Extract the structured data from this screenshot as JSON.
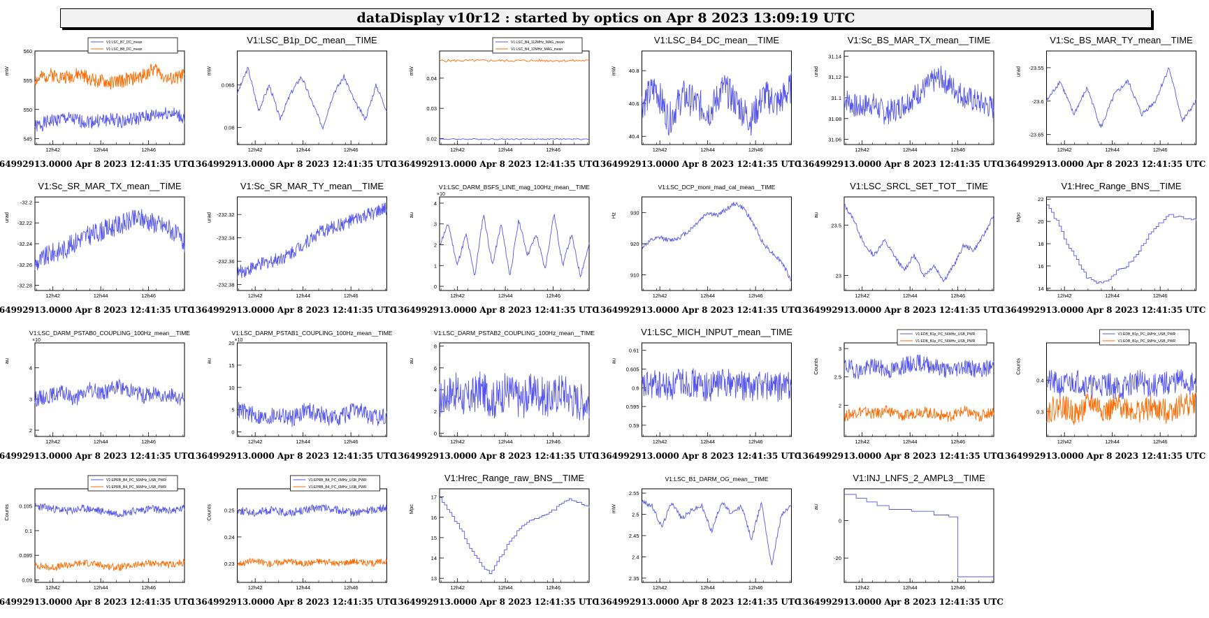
{
  "header": {
    "title": "dataDisplay v10r12 : started by optics on Apr  8 2023 13:09:19 UTC"
  },
  "colors": {
    "blue": "#5555ee",
    "orange": "#ff6a00",
    "frame": "#000000"
  },
  "footer_text": "1364992913.0000 Apr 8 2023 12:41:35 UTC",
  "x_ticks": [
    "12h42",
    "12h44",
    "12h46"
  ],
  "chart_data": [
    {
      "type": "line",
      "title": "",
      "ylabel": "mW",
      "ylim": [
        544,
        560
      ],
      "yticks": [
        545,
        550,
        555,
        560
      ],
      "legend": {
        "placement": "top",
        "entries": [
          "V1:LSC_B7_DC_mean",
          "V1:LSC_B8_DC_mean"
        ]
      },
      "series": [
        {
          "name": "V1:LSC_B7_DC_mean",
          "color": "blue",
          "kind": "noisy",
          "base": 547.5,
          "amp": 1.2,
          "seed": 1,
          "shape": [
            547,
            548,
            548.5,
            548,
            548,
            548.3,
            548,
            548.5,
            549,
            549.5,
            548.5
          ]
        },
        {
          "name": "V1:LSC_B8_DC_mean",
          "color": "orange",
          "kind": "noisy",
          "base": 555,
          "amp": 1.2,
          "seed": 2,
          "shape": [
            555,
            556,
            555.5,
            556,
            555,
            554.5,
            555,
            555.5,
            557,
            555,
            556
          ]
        }
      ]
    },
    {
      "type": "line",
      "title": "V1:LSC_B1p_DC_mean__TIME",
      "ylabel": "mW",
      "ylim": [
        0.058,
        0.069
      ],
      "yticks": [
        0.06,
        0.065
      ],
      "series": [
        {
          "color": "blue",
          "kind": "smooth",
          "seed": 3,
          "shape": [
            0.064,
            0.067,
            0.062,
            0.065,
            0.061,
            0.064,
            0.066,
            0.063,
            0.06,
            0.064,
            0.066,
            0.063,
            0.061,
            0.065,
            0.062
          ]
        }
      ]
    },
    {
      "type": "line",
      "title": "",
      "ylabel": "mW",
      "ylim": [
        0.018,
        0.049
      ],
      "yticks": [
        0.02,
        0.03,
        0.04
      ],
      "legend": {
        "placement": "top",
        "entries": [
          "V1:LSC_B4_112MHz_MAG_mean",
          "V1:LSC_B4_12MHz_MAG_mean"
        ]
      },
      "series": [
        {
          "name": "V1:LSC_B4_112MHz_MAG_mean",
          "color": "blue",
          "kind": "flat",
          "base": 0.0198,
          "amp": 0.0002,
          "seed": 4
        },
        {
          "name": "V1:LSC_B4_12MHz_MAG_mean",
          "color": "orange",
          "kind": "flat",
          "base": 0.0458,
          "amp": 0.0004,
          "seed": 5
        }
      ]
    },
    {
      "type": "line",
      "title": "V1:LSC_B4_DC_mean__TIME",
      "ylabel": "mW",
      "ylim": [
        40.35,
        40.92
      ],
      "yticks": [
        40.4,
        40.6,
        40.8
      ],
      "series": [
        {
          "color": "blue",
          "kind": "noisy",
          "amp": 0.1,
          "seed": 6,
          "shape": [
            40.6,
            40.7,
            40.5,
            40.65,
            40.6,
            40.55,
            40.7,
            40.6,
            40.5,
            40.65,
            40.6,
            40.7
          ]
        }
      ]
    },
    {
      "type": "line",
      "title": "V1:Sc_BS_MAR_TX_mean__TIME",
      "ylabel": "urad",
      "ylim": [
        31.055,
        31.145
      ],
      "yticks": [
        31.06,
        31.08,
        31.1,
        31.12,
        31.14
      ],
      "series": [
        {
          "color": "blue",
          "kind": "noisy",
          "amp": 0.012,
          "seed": 7,
          "shape": [
            31.1,
            31.09,
            31.095,
            31.085,
            31.09,
            31.1,
            31.11,
            31.12,
            31.11,
            31.1,
            31.095,
            31.09
          ]
        }
      ]
    },
    {
      "type": "line",
      "title": "V1:Sc_BS_MAR_TY_mean__TIME",
      "ylabel": "urad",
      "ylim": [
        -23.665,
        -23.525
      ],
      "yticks": [
        -23.65,
        -23.6,
        -23.55
      ],
      "series": [
        {
          "color": "blue",
          "kind": "smooth",
          "seed": 8,
          "shape": [
            -23.6,
            -23.57,
            -23.62,
            -23.58,
            -23.64,
            -23.59,
            -23.57,
            -23.62,
            -23.6,
            -23.55,
            -23.63,
            -23.6
          ]
        }
      ]
    },
    {
      "type": "line",
      "title": "V1:Sc_SR_MAR_TX_mean__TIME",
      "ylabel": "urad",
      "ylim": [
        -32.285,
        -32.195
      ],
      "yticks": [
        -32.28,
        -32.26,
        -32.24,
        -32.22,
        -32.2
      ],
      "series": [
        {
          "color": "blue",
          "kind": "noisy",
          "amp": 0.01,
          "seed": 9,
          "shape": [
            -32.26,
            -32.25,
            -32.245,
            -32.235,
            -32.23,
            -32.225,
            -32.22,
            -32.215,
            -32.22,
            -32.225,
            -32.24
          ]
        }
      ]
    },
    {
      "type": "line",
      "title": "V1:Sc_SR_MAR_TY_mean__TIME",
      "ylabel": "urad",
      "ylim": [
        -232.385,
        -232.305
      ],
      "yticks": [
        -232.38,
        -232.36,
        -232.34,
        -232.32
      ],
      "series": [
        {
          "color": "blue",
          "kind": "noisy",
          "amp": 0.006,
          "seed": 10,
          "shape": [
            -232.37,
            -232.365,
            -232.36,
            -232.355,
            -232.345,
            -232.335,
            -232.33,
            -232.325,
            -232.32,
            -232.315
          ]
        }
      ]
    },
    {
      "type": "line",
      "title": "V1:LSC_DARM_BSFS_LINE_mag_100Hz_mean__TIME",
      "title_small": true,
      "ylabel": "au",
      "exponent": "×10",
      "ylim": [
        -0.2,
        4.3
      ],
      "yticks": [
        0,
        1,
        2,
        3,
        4
      ],
      "series": [
        {
          "color": "blue",
          "kind": "smooth",
          "seed": 11,
          "shape": [
            2,
            3,
            1,
            2.5,
            0.5,
            3.5,
            1,
            3,
            0.5,
            3.2,
            1.5,
            2.5,
            0.8,
            3.5,
            1,
            2.5,
            0.5,
            2
          ]
        }
      ]
    },
    {
      "type": "line",
      "title": "V1:LSC_DCP_moni_mad_cal_mean__TIME",
      "title_small": true,
      "ylabel": "Hz",
      "ylim": [
        905,
        935
      ],
      "yticks": [
        910,
        920,
        930
      ],
      "series": [
        {
          "color": "blue",
          "kind": "smooth",
          "seed": 12,
          "shape": [
            919,
            921,
            922,
            921,
            922,
            924,
            927,
            930,
            929,
            931,
            933,
            931,
            926,
            920,
            917,
            914,
            908
          ]
        }
      ]
    },
    {
      "type": "line",
      "title": "V1:LSC_SRCL_SET_TOT__TIME",
      "ylabel": "au",
      "ylim": [
        22.85,
        23.78
      ],
      "yticks": [
        23,
        23.5
      ],
      "series": [
        {
          "color": "blue",
          "kind": "smooth",
          "seed": 13,
          "shape": [
            23.7,
            23.55,
            23.3,
            23.2,
            23.35,
            23.2,
            23.05,
            23.2,
            23.0,
            23.1,
            22.95,
            23.1,
            23.3,
            23.25,
            23.4,
            23.6
          ]
        }
      ]
    },
    {
      "type": "line",
      "title": "V1:Hrec_Range_BNS__TIME",
      "ylabel": "Mpc",
      "ylim": [
        13.8,
        22.2
      ],
      "yticks": [
        14,
        16,
        18,
        20,
        22
      ],
      "series": [
        {
          "color": "blue",
          "kind": "step",
          "seed": 14,
          "shape": [
            21.5,
            20,
            18,
            16.5,
            15,
            14.5,
            14.7,
            15.5,
            16,
            17,
            18.5,
            19.5,
            20.5,
            20.5,
            20.3,
            20.2
          ]
        }
      ]
    },
    {
      "type": "line",
      "title": "V1:LSC_DARM_PSTAB0_COUPLING_100Hz_mean__TIME",
      "title_small": true,
      "ylabel": "au",
      "exponent": "×10",
      "ylim": [
        1.8,
        4.8
      ],
      "yticks": [
        2,
        3,
        4
      ],
      "series": [
        {
          "color": "blue",
          "kind": "noisy",
          "amp": 0.25,
          "seed": 15,
          "shape": [
            3,
            3.1,
            3.2,
            3,
            3.3,
            3.2,
            3.4,
            3.3,
            3.1,
            3.2,
            3.1,
            3.0
          ]
        }
      ]
    },
    {
      "type": "line",
      "title": "V1:LSC_DARM_PSTAB1_COUPLING_100Hz_mean__TIME",
      "title_small": true,
      "ylabel": "au",
      "exponent": "×10",
      "ylim": [
        -1,
        20
      ],
      "yticks": [
        0,
        5,
        10,
        15,
        20
      ],
      "series": [
        {
          "color": "blue",
          "kind": "noisy",
          "amp": 2,
          "seed": 16,
          "shape": [
            5,
            4,
            3,
            4,
            3,
            5,
            4,
            3,
            4,
            5,
            3,
            4
          ]
        }
      ]
    },
    {
      "type": "line",
      "title": "V1:LSC_DARM_PSTAB2_COUPLING_100Hz_mean__TIME",
      "title_small": true,
      "ylabel": "au",
      "ylim": [
        -0.3,
        8.3
      ],
      "yticks": [
        0,
        2,
        4,
        6,
        8
      ],
      "series": [
        {
          "color": "blue",
          "kind": "noisy",
          "amp": 1.8,
          "seed": 17,
          "shape": [
            3,
            4,
            3,
            4,
            3,
            4,
            3,
            4,
            3,
            4,
            3,
            3
          ]
        }
      ]
    },
    {
      "type": "line",
      "title": "V1:LSC_MICH_INPUT_mean__TIME",
      "ylabel": "au",
      "ylim": [
        0.587,
        0.612
      ],
      "yticks": [
        0.59,
        0.595,
        0.6,
        0.605,
        0.61
      ],
      "series": [
        {
          "color": "blue",
          "kind": "noisy",
          "amp": 0.004,
          "seed": 18,
          "shape": [
            0.6,
            0.601,
            0.6,
            0.602,
            0.601,
            0.6,
            0.602,
            0.601,
            0.6,
            0.601,
            0.6,
            0.601
          ]
        }
      ]
    },
    {
      "type": "line",
      "title": "",
      "ylabel": "Counts",
      "ylim": [
        1.45,
        3.1
      ],
      "yticks": [
        2,
        2.5,
        3
      ],
      "legend": {
        "placement": "top",
        "entries": [
          "V1:EDB_B1p_PC_56MHz_USB_PWR",
          "V1:EDB_B1p_PC_56MHz_USB_PWR"
        ]
      },
      "series": [
        {
          "color": "blue",
          "kind": "noisy",
          "amp": 0.15,
          "seed": 19,
          "shape": [
            2.7,
            2.6,
            2.7,
            2.6,
            2.7,
            2.75,
            2.7,
            2.6,
            2.7,
            2.6,
            2.7
          ]
        },
        {
          "color": "orange",
          "kind": "noisy",
          "amp": 0.1,
          "seed": 20,
          "shape": [
            1.8,
            1.9,
            1.85,
            1.9,
            1.8,
            1.9,
            1.85,
            1.8,
            1.9,
            1.8,
            1.9
          ]
        }
      ]
    },
    {
      "type": "line",
      "title": "",
      "ylabel": "Counts",
      "ylim": [
        0.22,
        0.52
      ],
      "yticks": [
        0.3,
        0.4
      ],
      "legend": {
        "placement": "top",
        "entries": [
          "V1:EDB_B1p_PC_6MHz_USB_PWR",
          "V1:EDB_B1p_PC_6MHz_USB_PWR"
        ]
      },
      "series": [
        {
          "color": "blue",
          "kind": "noisy",
          "amp": 0.04,
          "seed": 21,
          "shape": [
            0.4,
            0.38,
            0.4,
            0.38,
            0.39,
            0.37,
            0.4,
            0.38,
            0.39,
            0.4,
            0.38
          ]
        },
        {
          "color": "orange",
          "kind": "noisy",
          "amp": 0.04,
          "seed": 22,
          "shape": [
            0.3,
            0.32,
            0.29,
            0.33,
            0.3,
            0.32,
            0.3,
            0.31,
            0.3,
            0.32,
            0.33
          ]
        }
      ]
    },
    {
      "type": "line",
      "title": "",
      "ylabel": "Counts",
      "ylim": [
        0.0895,
        0.1085
      ],
      "yticks": [
        0.09,
        0.095,
        0.1,
        0.105
      ],
      "legend": {
        "placement": "top",
        "entries": [
          "V1:EPRB_B4_PC_56MHz_USB_PWR",
          "V1:EPRB_B4_PC_56MHz_USB_PWR"
        ]
      },
      "series": [
        {
          "color": "blue",
          "kind": "noisy",
          "amp": 0.0008,
          "seed": 23,
          "shape": [
            0.105,
            0.1045,
            0.104,
            0.1045,
            0.104,
            0.1035,
            0.104,
            0.1045,
            0.104,
            0.1045
          ]
        },
        {
          "color": "orange",
          "kind": "noisy",
          "amp": 0.0007,
          "seed": 24,
          "shape": [
            0.093,
            0.0925,
            0.093,
            0.0935,
            0.093,
            0.0925,
            0.093,
            0.0935,
            0.093,
            0.0935
          ]
        }
      ]
    },
    {
      "type": "line",
      "title": "",
      "ylabel": "Counts",
      "ylim": [
        0.223,
        0.258
      ],
      "yticks": [
        0.23,
        0.24,
        0.25
      ],
      "legend": {
        "placement": "top",
        "entries": [
          "V1:EPRB_B4_PC_6MHz_USB_PWR",
          "V1:EPRB_B4_PC_6MHz_USB_PWR"
        ]
      },
      "series": [
        {
          "color": "blue",
          "kind": "noisy",
          "amp": 0.0015,
          "seed": 25,
          "shape": [
            0.25,
            0.249,
            0.25,
            0.249,
            0.25,
            0.251,
            0.25,
            0.249,
            0.25,
            0.251
          ]
        },
        {
          "color": "orange",
          "kind": "noisy",
          "amp": 0.0012,
          "seed": 26,
          "shape": [
            0.23,
            0.231,
            0.23,
            0.231,
            0.23,
            0.231,
            0.23,
            0.231,
            0.23,
            0.231
          ]
        }
      ]
    },
    {
      "type": "line",
      "title": "V1:Hrec_Range_raw_BNS__TIME",
      "ylabel": "Mpc",
      "ylim": [
        12.8,
        17.4
      ],
      "yticks": [
        13,
        14,
        15,
        16,
        17
      ],
      "series": [
        {
          "color": "blue",
          "kind": "step",
          "seed": 27,
          "shape": [
            17,
            16.2,
            15.5,
            14.5,
            13.8,
            13.2,
            14,
            14.8,
            15.5,
            15.8,
            16,
            16.2,
            16.6,
            16.9,
            16.7,
            16.5
          ]
        }
      ]
    },
    {
      "type": "line",
      "title": "V1:LSC_B1_DARM_OG_mean__TIME",
      "title_small": true,
      "ylabel": "mW",
      "ylim": [
        2.34,
        2.56
      ],
      "yticks": [
        2.35,
        2.4,
        2.45,
        2.5,
        2.55
      ],
      "series": [
        {
          "color": "blue",
          "kind": "smooth",
          "seed": 28,
          "shape": [
            2.53,
            2.52,
            2.47,
            2.53,
            2.49,
            2.51,
            2.52,
            2.46,
            2.53,
            2.5,
            2.52,
            2.44,
            2.53,
            2.38,
            2.5,
            2.52
          ]
        }
      ]
    },
    {
      "type": "line",
      "title": "V1:INJ_LNFS_2_AMPL3__TIME",
      "ylabel": "au",
      "ylim": [
        -33,
        17
      ],
      "yticks": [
        -20,
        0
      ],
      "series": [
        {
          "color": "blue",
          "kind": "steps",
          "seed": 29,
          "points": [
            [
              0,
              14
            ],
            [
              0.08,
              12
            ],
            [
              0.15,
              10
            ],
            [
              0.22,
              8
            ],
            [
              0.3,
              6
            ],
            [
              0.45,
              5
            ],
            [
              0.6,
              3
            ],
            [
              0.7,
              2
            ],
            [
              0.75,
              2
            ],
            [
              0.76,
              -30
            ],
            [
              1,
              -30
            ]
          ]
        }
      ]
    }
  ]
}
